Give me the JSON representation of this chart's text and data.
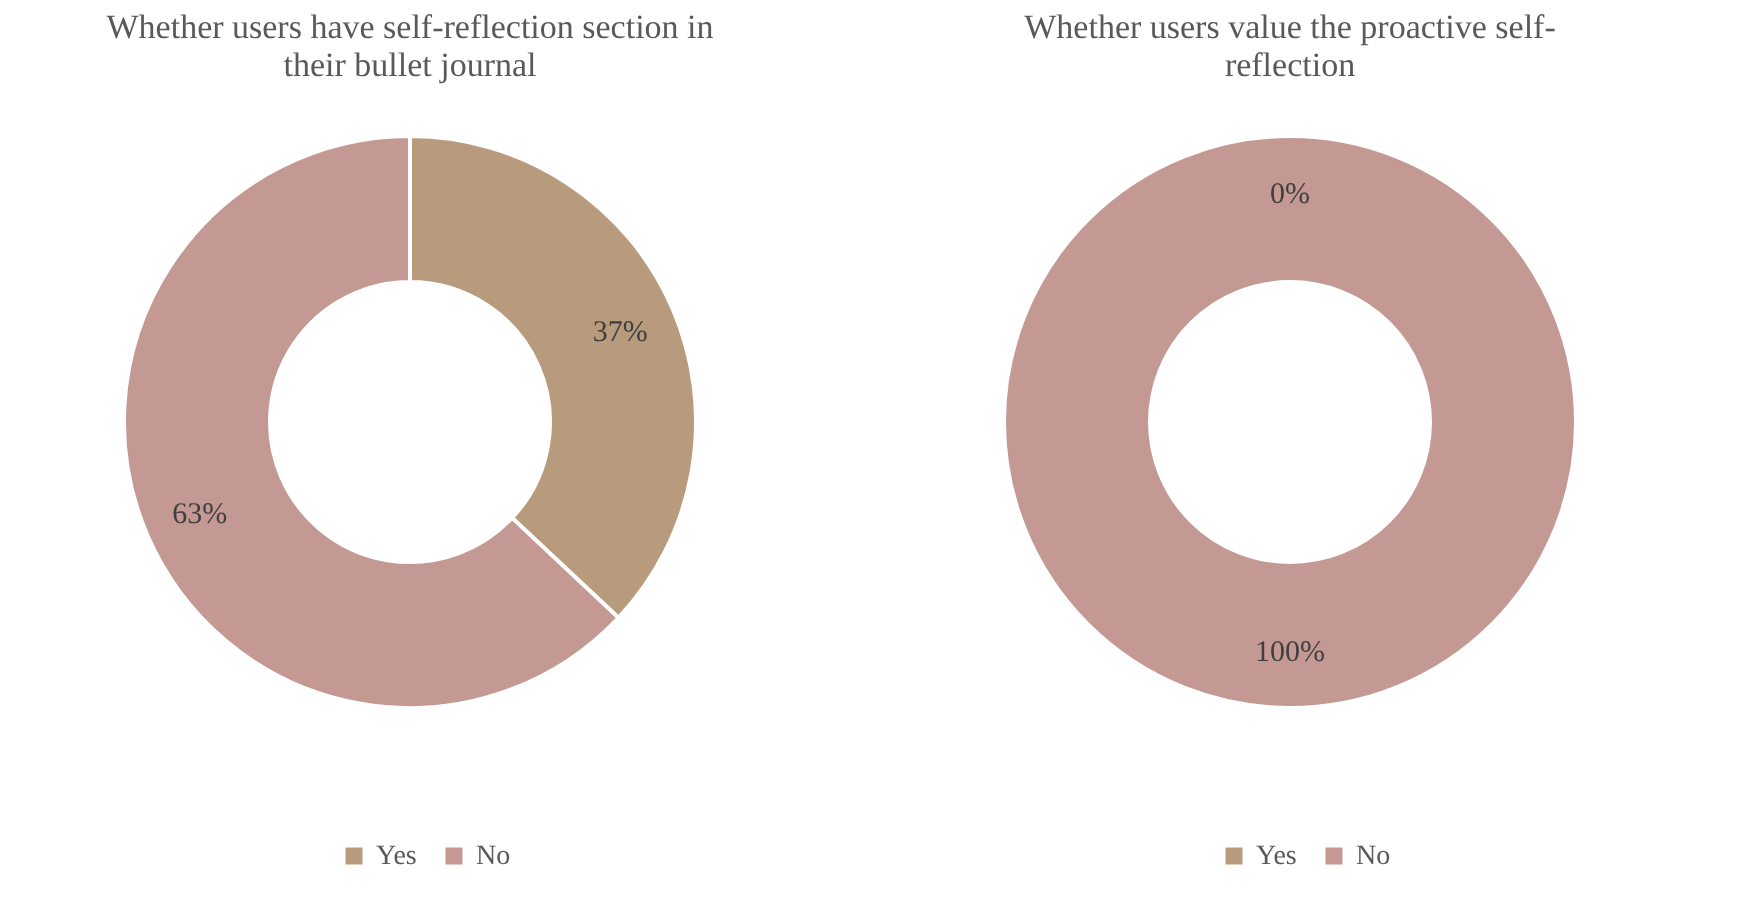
{
  "chart_data": [
    {
      "type": "donut",
      "title": "Whether users have self-reflection section in their bullet journal",
      "categories": [
        "Yes",
        "No"
      ],
      "values": [
        37,
        63
      ],
      "value_labels": [
        "37%",
        "63%"
      ],
      "colors": [
        "#b89a7c",
        "#c49893"
      ],
      "legend": "bottom"
    },
    {
      "type": "donut",
      "title": "Whether users value the proactive self-reflection",
      "categories": [
        "Yes",
        "No"
      ],
      "values": [
        0,
        100
      ],
      "value_labels": [
        "0%",
        "100%"
      ],
      "colors": [
        "#b89a7c",
        "#c49893"
      ],
      "legend": "bottom"
    }
  ]
}
